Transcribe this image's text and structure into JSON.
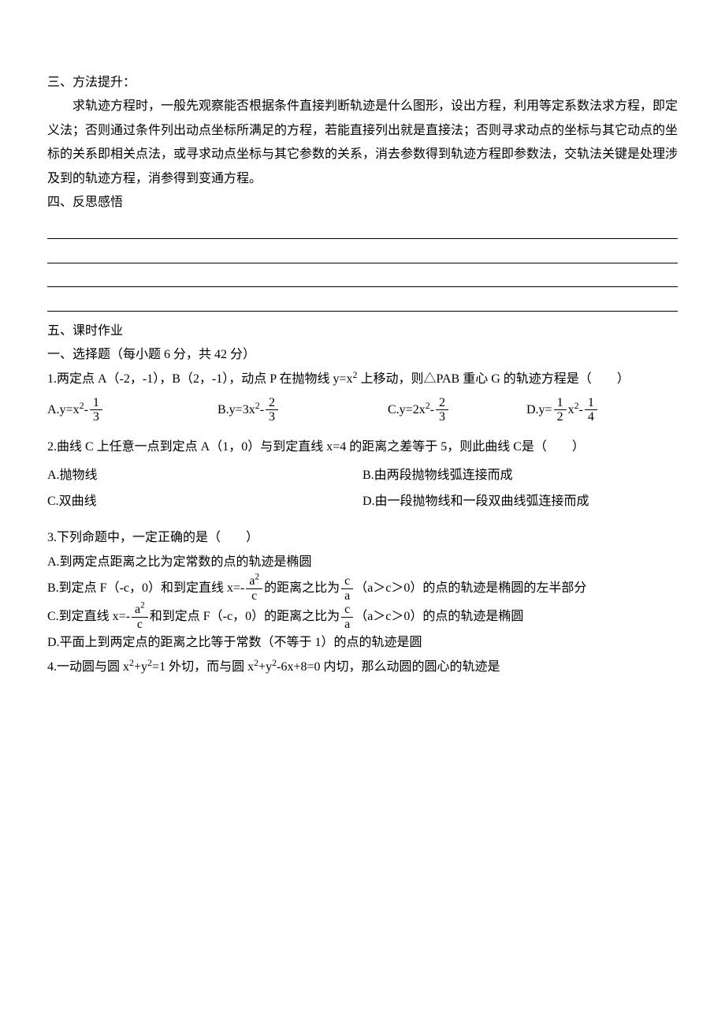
{
  "section3": {
    "heading": "三、方法提升：",
    "body": "求轨迹方程时，一般先观察能否根据条件直接判断轨迹是什么图形，设出方程，利用等定系数法求方程，即定义法；否则通过条件列出动点坐标所满足的方程，若能直接列出就是直接法；否则寻求动点的坐标与其它动点的坐标的关系即相关点法，或寻求动点坐标与其它参数的关系，消去参数得到轨迹方程即参数法，交轨法关键是处理涉及到的轨迹方程，消参得到变通方程。"
  },
  "section4": {
    "heading": "四、反思感悟"
  },
  "section5": {
    "heading": "五、课时作业",
    "sub": "一、选择题（每小题 6 分，共 42 分）"
  },
  "q1": {
    "stem_a": "1.两定点 A（-2，-1），B（2，-1），动点 P 在抛物线 y=x",
    "stem_b": " 上移动，则△PAB 重心 G 的轨迹方程是（　　）",
    "A_pre": "A.y=x",
    "A_sup": "2",
    "A_post": "-",
    "A_num": "1",
    "A_den": "3",
    "B_pre": "B.y=3x",
    "B_sup": "2",
    "B_post": "-",
    "B_num": "2",
    "B_den": "3",
    "C_pre": "C.y=2x",
    "C_sup": "2",
    "C_post": "-",
    "C_num": "2",
    "C_den": "3",
    "D_pre": "D.y=",
    "D_num1": "1",
    "D_den1": "2",
    "D_mid": "x",
    "D_sup": "2",
    "D_post": "-",
    "D_num2": "1",
    "D_den2": "4"
  },
  "q2": {
    "stem": "2.曲线 C 上任意一点到定点 A（1，0）与到定直线 x=4 的距离之差等于 5，则此曲线 C是（　　）",
    "A": "A.抛物线",
    "B": "B.由两段抛物线弧连接而成",
    "C": "C.双曲线",
    "D": "D.由一段抛物线和一段双曲线弧连接而成"
  },
  "q3": {
    "stem": "3.下列命题中，一定正确的是（　　）",
    "A": "A.到两定点距离之比为定常数的点的轨迹是椭圆",
    "B_pre": "B.到定点 F（-c，0）和到定直线 x=-",
    "B_num1_top": "a",
    "B_num1_sup": "2",
    "B_den1": "c",
    "B_mid": "的距离之比为",
    "B_num2": "c",
    "B_den2": "a",
    "B_post": "（a＞c＞0）的点的轨迹是椭圆的左半部分",
    "C_pre": "C.到定直线 x=-",
    "C_num1_top": "a",
    "C_num1_sup": "2",
    "C_den1": "c",
    "C_mid": "和到定点 F（-c，0）的距离之比为",
    "C_num2": "c",
    "C_den2": "a",
    "C_post": "（a＞c＞0）的点的轨迹是椭圆",
    "D": "D.平面上到两定点的距离之比等于常数（不等于 1）的点的轨迹是圆"
  },
  "q4": {
    "stem_a": "4.一动圆与圆 x",
    "stem_b": "+y",
    "stem_c": "=1 外切，而与圆 x",
    "stem_d": "+y",
    "stem_e": "-6x+8=0 内切，那么动圆的圆心的轨迹是"
  }
}
